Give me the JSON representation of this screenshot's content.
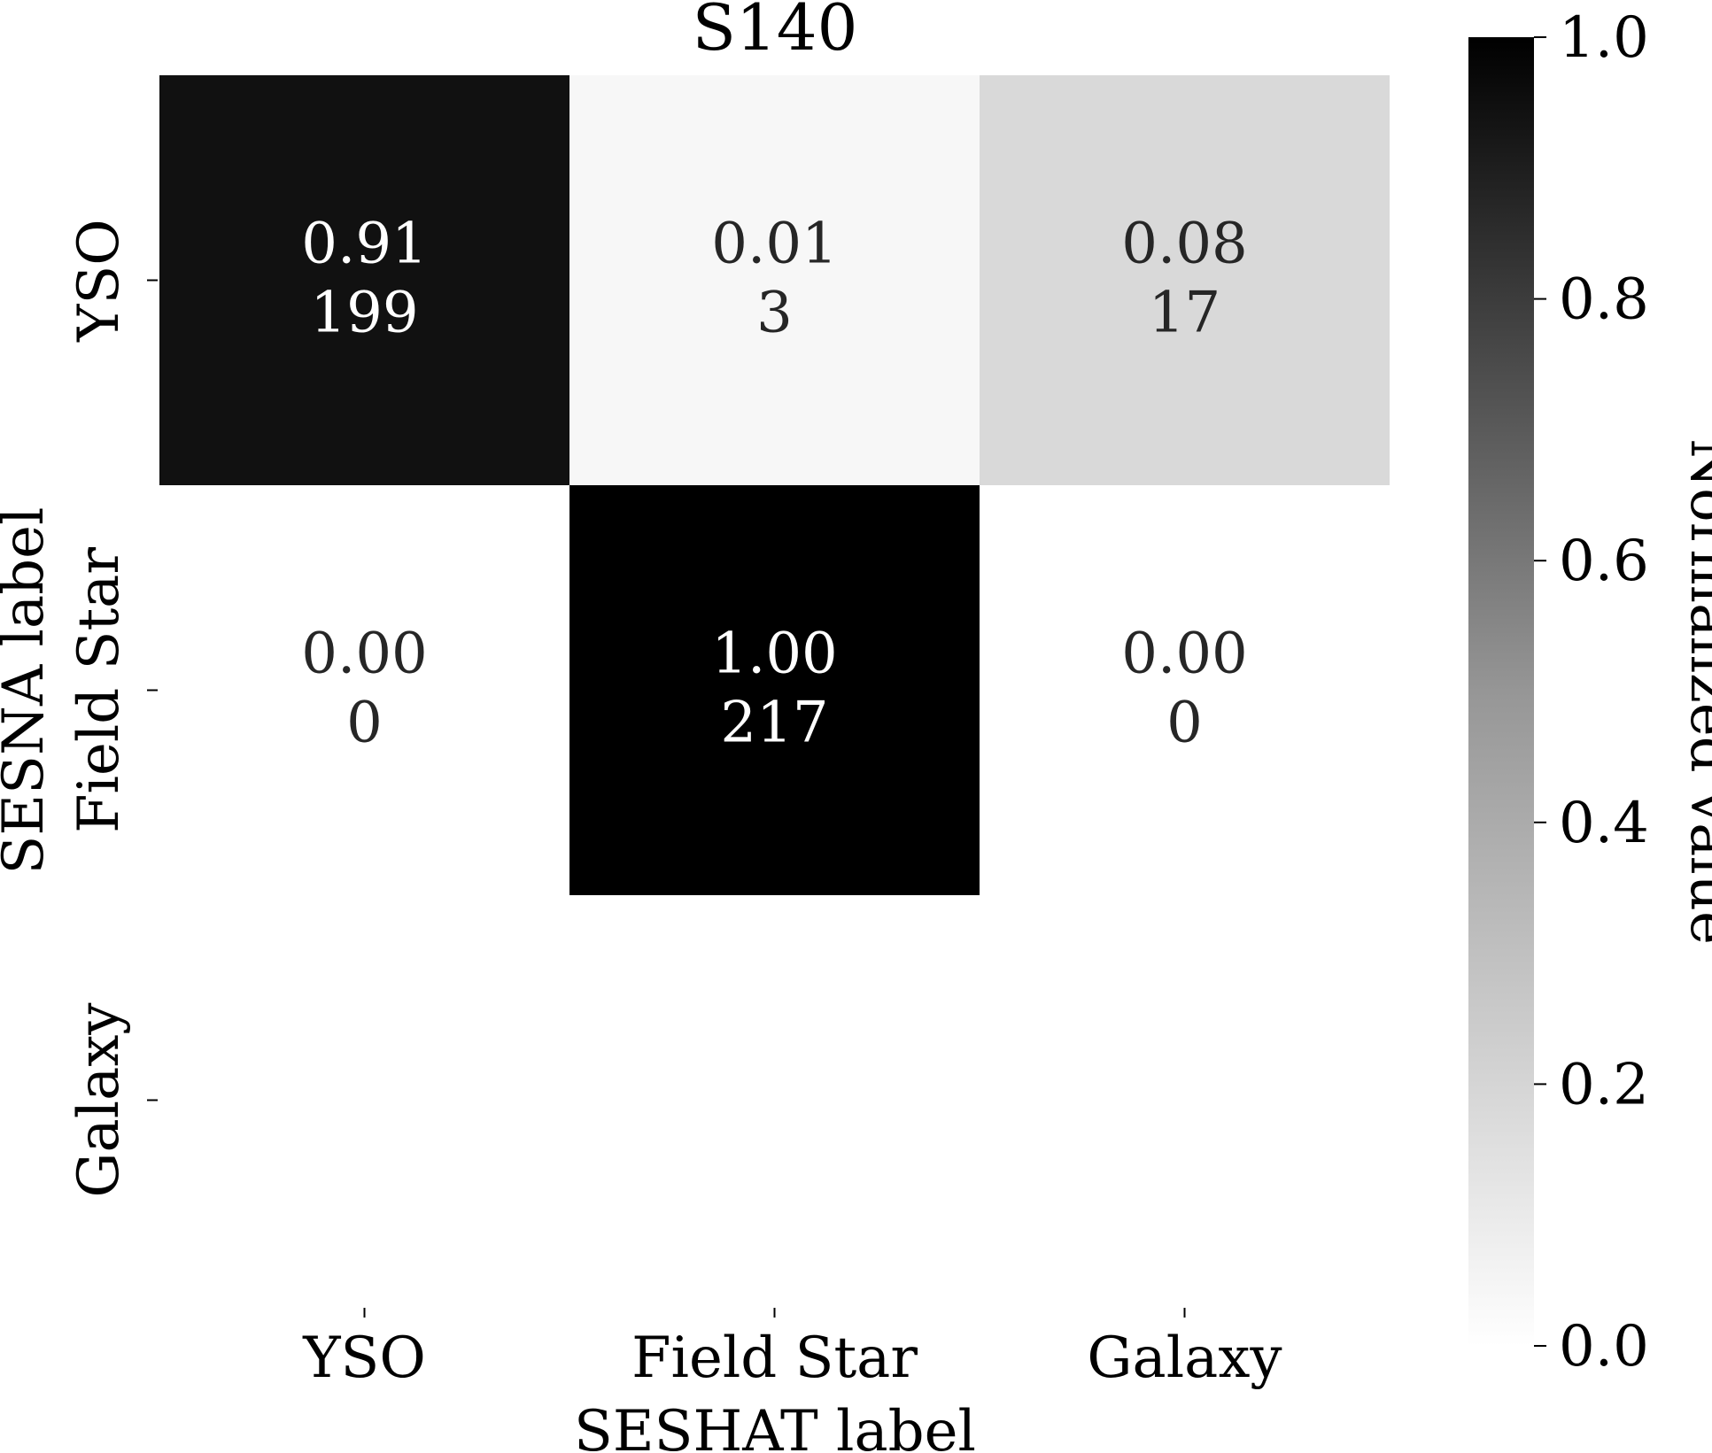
{
  "chart_data": {
    "type": "heatmap",
    "title": "S140",
    "xlabel": "SESHAT label",
    "ylabel": "SESNA label",
    "x_categories": [
      "YSO",
      "Field Star",
      "Galaxy"
    ],
    "y_categories": [
      "YSO",
      "Field Star",
      "Galaxy"
    ],
    "normalized": [
      [
        0.91,
        0.01,
        0.08
      ],
      [
        0.0,
        1.0,
        0.0
      ],
      [
        null,
        null,
        null
      ]
    ],
    "normalized_labels": [
      [
        "0.91",
        "0.01",
        "0.08"
      ],
      [
        "0.00",
        "1.00",
        "0.00"
      ],
      [
        null,
        null,
        null
      ]
    ],
    "counts": [
      [
        199,
        3,
        17
      ],
      [
        0,
        217,
        0
      ],
      [
        null,
        null,
        null
      ]
    ],
    "colorbar": {
      "label": "Normalized value",
      "range": [
        0.0,
        1.0
      ],
      "ticks": [
        "0.0",
        "0.2",
        "0.4",
        "0.6",
        "0.8",
        "1.0"
      ],
      "colormap": "Greys (white to black)"
    },
    "grid": false
  }
}
